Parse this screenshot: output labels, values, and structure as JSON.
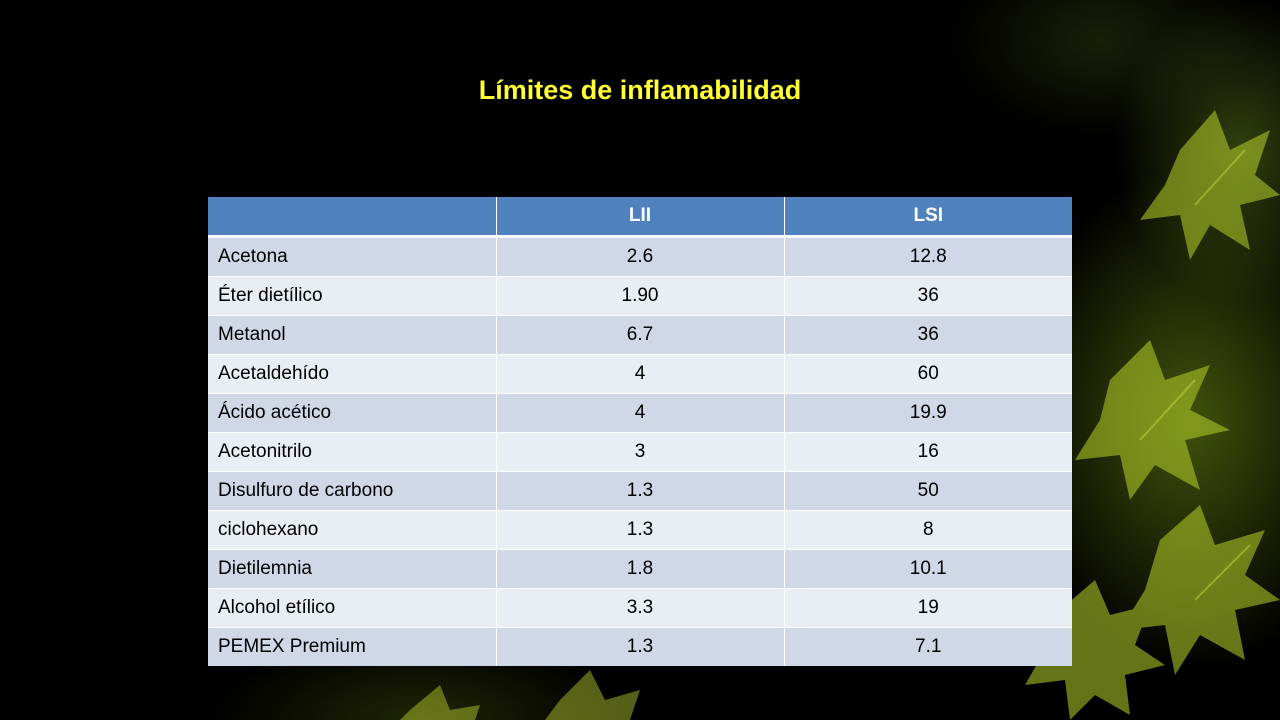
{
  "slide": {
    "title": "Límites de inflamabilidad",
    "accent_color": "#ffff33",
    "header_color": "#4f81bd",
    "row_colors": [
      "#d0d8e8",
      "#e9edf4"
    ],
    "background_decoration": "green-leaves"
  },
  "table": {
    "headers": [
      "",
      "LII",
      "LSI"
    ],
    "rows": [
      [
        "Acetona",
        "2.6",
        "12.8"
      ],
      [
        "Éter dietílico",
        "1.90",
        "36"
      ],
      [
        "Metanol",
        "6.7",
        "36"
      ],
      [
        "Acetaldehído",
        "4",
        "60"
      ],
      [
        "Ácido acético",
        "4",
        "19.9"
      ],
      [
        "Acetonitrilo",
        "3",
        "16"
      ],
      [
        "Disulfuro de carbono",
        "1.3",
        "50"
      ],
      [
        "ciclohexano",
        "1.3",
        "8"
      ],
      [
        "Dietilemnia",
        "1.8",
        "10.1"
      ],
      [
        "Alcohol etílico",
        "3.3",
        "19"
      ],
      [
        "PEMEX Premium",
        "1.3",
        "7.1"
      ]
    ]
  }
}
